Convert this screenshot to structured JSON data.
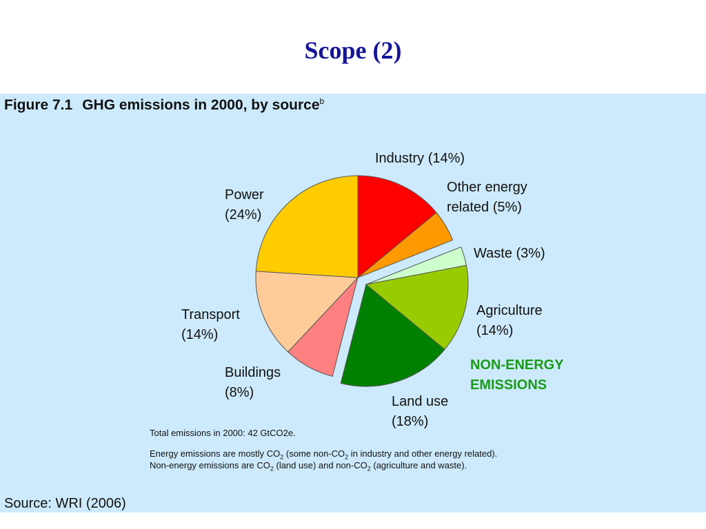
{
  "slide": {
    "title": "Scope (2)"
  },
  "figure": {
    "number": "Figure 7.1",
    "caption": "GHG emissions in 2000, by source",
    "caption_mark": "b",
    "panel_color": "#cdeafc"
  },
  "chart_data": {
    "type": "pie",
    "unit": "%",
    "slices": [
      {
        "name": "Industry",
        "value": 14,
        "label_lines": [
          "Industry (14%)"
        ],
        "color": "#ff0000",
        "group": "energy"
      },
      {
        "name": "Other energy related",
        "value": 5,
        "label_lines": [
          "Other energy",
          "related (5%)"
        ],
        "color": "#ff9900",
        "group": "energy"
      },
      {
        "name": "Waste",
        "value": 3,
        "label_lines": [
          "Waste (3%)"
        ],
        "color": "#ccffcc",
        "group": "non-energy"
      },
      {
        "name": "Agriculture",
        "value": 14,
        "label_lines": [
          "Agriculture",
          "(14%)"
        ],
        "color": "#99cc00",
        "group": "non-energy"
      },
      {
        "name": "Land use",
        "value": 18,
        "label_lines": [
          "Land use",
          "(18%)"
        ],
        "color": "#008000",
        "group": "non-energy"
      },
      {
        "name": "Buildings",
        "value": 8,
        "label_lines": [
          "Buildings",
          "(8%)"
        ],
        "color": "#ff8080",
        "group": "energy"
      },
      {
        "name": "Transport",
        "value": 14,
        "label_lines": [
          "Transport",
          "(14%)"
        ],
        "color": "#ffcc99",
        "group": "energy"
      },
      {
        "name": "Power",
        "value": 24,
        "label_lines": [
          "Power",
          "(24%)"
        ],
        "color": "#ffcc00",
        "group": "energy"
      }
    ],
    "exploded_group": "non-energy",
    "group_label_lines": [
      "NON-ENERGY",
      "EMISSIONS"
    ],
    "group_label_color": "#1a9a1a"
  },
  "notes": {
    "total": "Total emissions in 2000: 42 GtCO2e.",
    "energy": [
      "Energy emissions are mostly CO",
      "2",
      " (some non-CO",
      "2",
      " in industry and other energy related)."
    ],
    "nonenergy": [
      "Non-energy emissions are CO",
      "2",
      " (land use) and non-CO",
      "2",
      " (agriculture and waste)."
    ]
  },
  "source": "Source:  WRI (2006)"
}
